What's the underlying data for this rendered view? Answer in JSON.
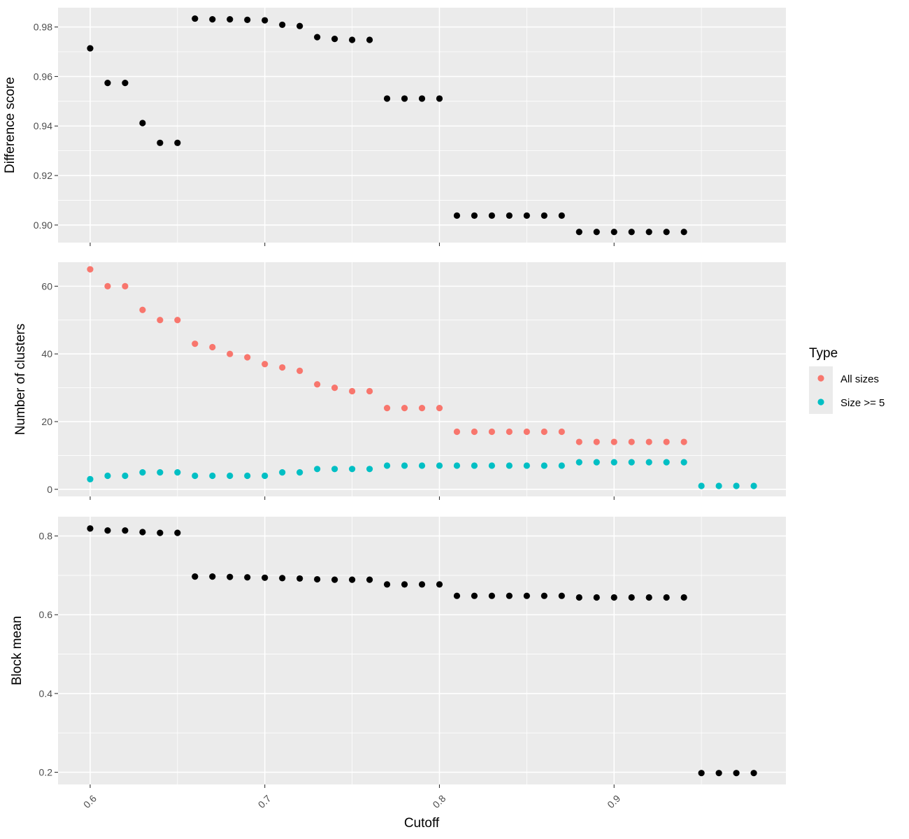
{
  "chart_data": {
    "type": "scatter",
    "x_label": "Cutoff",
    "x_ticks": [
      "0.6",
      "0.7",
      "0.8",
      "0.9"
    ],
    "x_tick_values": [
      0.6,
      0.7,
      0.8,
      0.9
    ],
    "x_range": [
      0.5816,
      0.9984
    ],
    "grid": true,
    "colors": {
      "panel_bg": "#ebebeb",
      "grid": "#ffffff",
      "black": "#000000",
      "all_sizes": "#f8766d",
      "size_ge_5": "#00bfc4"
    },
    "legend": {
      "title": "Type",
      "position": "right",
      "entries": [
        {
          "label": "All sizes",
          "color": "#f8766d"
        },
        {
          "label": "Size >= 5",
          "color": "#00bfc4"
        }
      ]
    },
    "panels": [
      {
        "ylabel": "Difference score",
        "y_range": [
          0.8929,
          0.9878
        ],
        "y_ticks": [
          "0.90",
          "0.92",
          "0.94",
          "0.96",
          "0.98"
        ],
        "y_tick_values": [
          0.9,
          0.92,
          0.94,
          0.96,
          0.98
        ],
        "series": [
          {
            "color": "#000000",
            "points": [
              [
                0.6,
                0.9714
              ],
              [
                0.61,
                0.9574
              ],
              [
                0.62,
                0.9574
              ],
              [
                0.63,
                0.9412
              ],
              [
                0.64,
                0.9332
              ],
              [
                0.65,
                0.9332
              ],
              [
                0.66,
                0.9834
              ],
              [
                0.67,
                0.9831
              ],
              [
                0.68,
                0.9831
              ],
              [
                0.69,
                0.9829
              ],
              [
                0.7,
                0.9827
              ],
              [
                0.71,
                0.9809
              ],
              [
                0.72,
                0.9804
              ],
              [
                0.73,
                0.9759
              ],
              [
                0.74,
                0.9752
              ],
              [
                0.75,
                0.9748
              ],
              [
                0.76,
                0.9748
              ],
              [
                0.77,
                0.9511
              ],
              [
                0.78,
                0.9511
              ],
              [
                0.79,
                0.9511
              ],
              [
                0.8,
                0.9511
              ],
              [
                0.81,
                0.9038
              ],
              [
                0.82,
                0.9038
              ],
              [
                0.83,
                0.9038
              ],
              [
                0.84,
                0.9038
              ],
              [
                0.85,
                0.9038
              ],
              [
                0.86,
                0.9038
              ],
              [
                0.87,
                0.9038
              ],
              [
                0.88,
                0.8972
              ],
              [
                0.89,
                0.8972
              ],
              [
                0.9,
                0.8972
              ],
              [
                0.91,
                0.8972
              ],
              [
                0.92,
                0.8972
              ],
              [
                0.93,
                0.8972
              ],
              [
                0.94,
                0.8972
              ]
            ]
          }
        ]
      },
      {
        "ylabel": "Number of clusters",
        "y_range": [
          -2.1,
          67.1
        ],
        "y_ticks": [
          "0",
          "20",
          "40",
          "60"
        ],
        "y_tick_values": [
          0,
          20,
          40,
          60
        ],
        "series": [
          {
            "name": "All sizes",
            "color": "#f8766d",
            "points": [
              [
                0.6,
                65
              ],
              [
                0.61,
                60
              ],
              [
                0.62,
                60
              ],
              [
                0.63,
                53
              ],
              [
                0.64,
                50
              ],
              [
                0.65,
                50
              ],
              [
                0.66,
                43
              ],
              [
                0.67,
                42
              ],
              [
                0.68,
                40
              ],
              [
                0.69,
                39
              ],
              [
                0.7,
                37
              ],
              [
                0.71,
                36
              ],
              [
                0.72,
                35
              ],
              [
                0.73,
                31
              ],
              [
                0.74,
                30
              ],
              [
                0.75,
                29
              ],
              [
                0.76,
                29
              ],
              [
                0.77,
                24
              ],
              [
                0.78,
                24
              ],
              [
                0.79,
                24
              ],
              [
                0.8,
                24
              ],
              [
                0.81,
                17
              ],
              [
                0.82,
                17
              ],
              [
                0.83,
                17
              ],
              [
                0.84,
                17
              ],
              [
                0.85,
                17
              ],
              [
                0.86,
                17
              ],
              [
                0.87,
                17
              ],
              [
                0.88,
                14
              ],
              [
                0.89,
                14
              ],
              [
                0.9,
                14
              ],
              [
                0.91,
                14
              ],
              [
                0.92,
                14
              ],
              [
                0.93,
                14
              ],
              [
                0.94,
                14
              ]
            ]
          },
          {
            "name": "Size >= 5",
            "color": "#00bfc4",
            "points": [
              [
                0.6,
                3
              ],
              [
                0.61,
                4
              ],
              [
                0.62,
                4
              ],
              [
                0.63,
                5
              ],
              [
                0.64,
                5
              ],
              [
                0.65,
                5
              ],
              [
                0.66,
                4
              ],
              [
                0.67,
                4
              ],
              [
                0.68,
                4
              ],
              [
                0.69,
                4
              ],
              [
                0.7,
                4
              ],
              [
                0.71,
                5
              ],
              [
                0.72,
                5
              ],
              [
                0.73,
                6
              ],
              [
                0.74,
                6
              ],
              [
                0.75,
                6
              ],
              [
                0.76,
                6
              ],
              [
                0.77,
                7
              ],
              [
                0.78,
                7
              ],
              [
                0.79,
                7
              ],
              [
                0.8,
                7
              ],
              [
                0.81,
                7
              ],
              [
                0.82,
                7
              ],
              [
                0.83,
                7
              ],
              [
                0.84,
                7
              ],
              [
                0.85,
                7
              ],
              [
                0.86,
                7
              ],
              [
                0.87,
                7
              ],
              [
                0.88,
                8
              ],
              [
                0.89,
                8
              ],
              [
                0.9,
                8
              ],
              [
                0.91,
                8
              ],
              [
                0.92,
                8
              ],
              [
                0.93,
                8
              ],
              [
                0.94,
                8
              ],
              [
                0.95,
                1
              ],
              [
                0.96,
                1
              ],
              [
                0.97,
                1
              ],
              [
                0.98,
                1
              ]
            ]
          }
        ]
      },
      {
        "ylabel": "Block mean",
        "y_range": [
          0.169,
          0.849
        ],
        "y_ticks": [
          "0.2",
          "0.4",
          "0.6",
          "0.8"
        ],
        "y_tick_values": [
          0.2,
          0.4,
          0.6,
          0.8
        ],
        "series": [
          {
            "color": "#000000",
            "points": [
              [
                0.6,
                0.819
              ],
              [
                0.61,
                0.814
              ],
              [
                0.62,
                0.814
              ],
              [
                0.63,
                0.81
              ],
              [
                0.64,
                0.808
              ],
              [
                0.65,
                0.808
              ],
              [
                0.66,
                0.697
              ],
              [
                0.67,
                0.697
              ],
              [
                0.68,
                0.696
              ],
              [
                0.69,
                0.695
              ],
              [
                0.7,
                0.694
              ],
              [
                0.71,
                0.693
              ],
              [
                0.72,
                0.692
              ],
              [
                0.73,
                0.69
              ],
              [
                0.74,
                0.689
              ],
              [
                0.75,
                0.689
              ],
              [
                0.76,
                0.689
              ],
              [
                0.77,
                0.677
              ],
              [
                0.78,
                0.677
              ],
              [
                0.79,
                0.677
              ],
              [
                0.8,
                0.677
              ],
              [
                0.81,
                0.648
              ],
              [
                0.82,
                0.648
              ],
              [
                0.83,
                0.648
              ],
              [
                0.84,
                0.648
              ],
              [
                0.85,
                0.648
              ],
              [
                0.86,
                0.648
              ],
              [
                0.87,
                0.648
              ],
              [
                0.88,
                0.644
              ],
              [
                0.89,
                0.644
              ],
              [
                0.9,
                0.644
              ],
              [
                0.91,
                0.644
              ],
              [
                0.92,
                0.644
              ],
              [
                0.93,
                0.644
              ],
              [
                0.94,
                0.644
              ],
              [
                0.95,
                0.198
              ],
              [
                0.96,
                0.198
              ],
              [
                0.97,
                0.198
              ],
              [
                0.98,
                0.198
              ]
            ]
          }
        ]
      }
    ]
  }
}
